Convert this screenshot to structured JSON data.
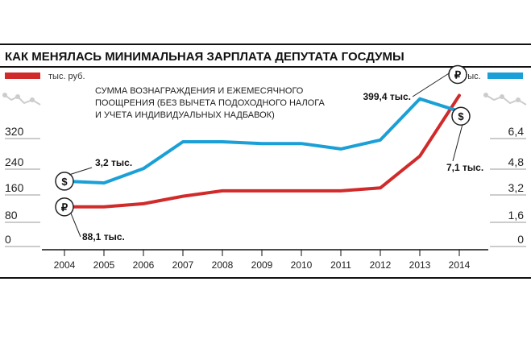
{
  "chart_data": {
    "type": "line",
    "title": "КАК МЕНЯЛАСЬ МИНИМАЛЬНАЯ ЗАРПЛАТА ДЕПУТАТА ГОСДУМЫ",
    "note_lines": [
      "СУММА ВОЗНАГРАЖДЕНИЯ И ЕЖЕМЕСЯЧНОГО",
      "ПООЩРЕНИЯ (БЕЗ ВЫЧЕТА ПОДОХОДНОГО НАЛОГА",
      "И УЧЕТА ИНДИВИДУАЛЬНЫХ НАДБАВОК)"
    ],
    "x": [
      "2004",
      "2005",
      "2006",
      "2007",
      "2008",
      "2009",
      "2010",
      "2011",
      "2012",
      "2013",
      "2014"
    ],
    "left_axis": {
      "unit": "тыс. руб.",
      "ticks": [
        "320",
        "240",
        "160",
        "80",
        "0"
      ],
      "tick_values": [
        320,
        240,
        160,
        80,
        0
      ],
      "range": [
        0,
        360
      ]
    },
    "right_axis": {
      "unit": "$ тыс.",
      "ticks": [
        "6,4",
        "4,8",
        "3,2",
        "1,6",
        "0"
      ],
      "tick_values": [
        6.4,
        4.8,
        3.2,
        1.6,
        0
      ],
      "range": [
        0,
        7.2
      ]
    },
    "series": [
      {
        "key": "rub",
        "axis": "left",
        "color": "#d12a2a",
        "badge": "₽",
        "values": [
          88.1,
          88.1,
          97,
          118,
          133,
          133,
          133,
          133,
          141,
          230,
          399.4
        ]
      },
      {
        "key": "usd",
        "axis": "right",
        "color": "#1a9fd6",
        "badge": "$",
        "values": [
          3.2,
          3.1,
          3.9,
          5.4,
          5.4,
          5.3,
          5.3,
          5.0,
          5.5,
          7.8,
          7.1
        ]
      }
    ],
    "annotations": {
      "rub_start": "88,1 тыс.",
      "rub_end": "399,4 тыс.",
      "usd_start": "3,2 тыс.",
      "usd_end": "7,1 тыс."
    }
  }
}
